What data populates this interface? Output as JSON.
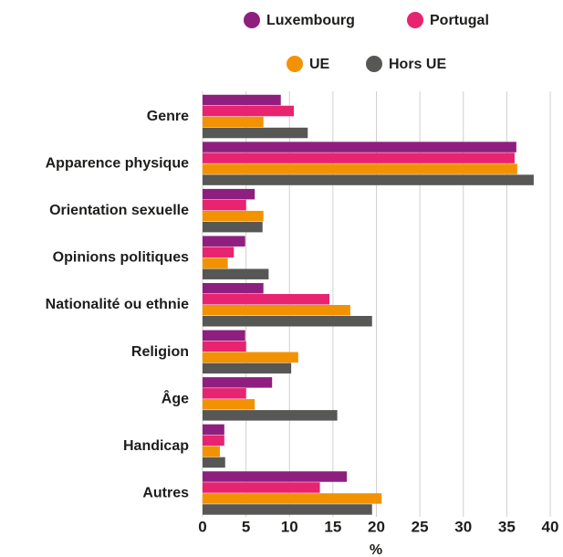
{
  "chart_data": {
    "type": "barh",
    "categories": [
      "Genre",
      "Apparence physique",
      "Orientation sexuelle",
      "Opinions politiques",
      "Nationalité ou ethnie",
      "Religion",
      "Âge",
      "Handicap",
      "Autres"
    ],
    "series": [
      {
        "name": "Luxembourg",
        "color": "#8e1f7f",
        "values": [
          9.0,
          36.1,
          6.0,
          4.9,
          7.0,
          4.9,
          8.0,
          2.5,
          16.6
        ]
      },
      {
        "name": "Portugal",
        "color": "#e8236f",
        "values": [
          10.5,
          35.9,
          5.0,
          3.6,
          14.6,
          5.0,
          5.0,
          2.5,
          13.5
        ]
      },
      {
        "name": "UE",
        "color": "#f39200",
        "values": [
          7.0,
          36.2,
          7.0,
          2.9,
          17.0,
          11.0,
          6.0,
          2.0,
          20.6
        ]
      },
      {
        "name": "Hors UE",
        "color": "#575756",
        "values": [
          12.1,
          38.1,
          6.9,
          7.6,
          19.5,
          10.2,
          15.5,
          2.6,
          19.5
        ]
      }
    ],
    "xlabel": "%",
    "xlim": [
      0,
      40
    ],
    "xticks": [
      0,
      5,
      10,
      15,
      20,
      25,
      30,
      35,
      40
    ],
    "grid": true
  }
}
